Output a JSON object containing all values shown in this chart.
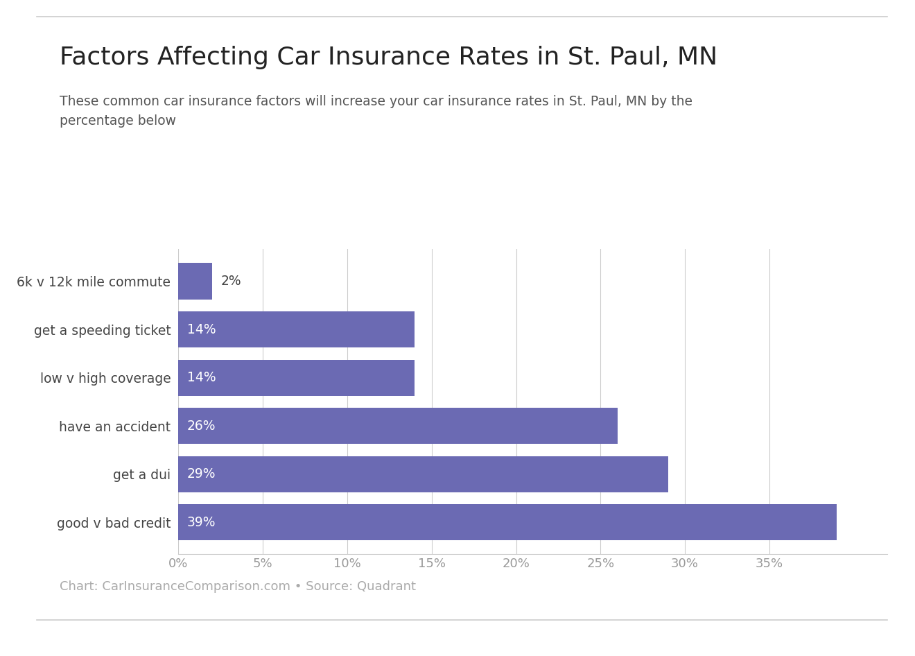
{
  "title": "Factors Affecting Car Insurance Rates in St. Paul, MN",
  "subtitle": "These common car insurance factors will increase your car insurance rates in St. Paul, MN by the\npercentage below",
  "categories": [
    "6k v 12k mile commute",
    "get a speeding ticket",
    "low v high coverage",
    "have an accident",
    "get a dui",
    "good v bad credit"
  ],
  "values": [
    2,
    14,
    14,
    26,
    29,
    39
  ],
  "bar_color": "#6b6ab3",
  "label_color_white": "#ffffff",
  "label_color_dark": "#555555",
  "background_color": "#ffffff",
  "footer_text": "Chart: CarInsuranceComparison.com • Source: Quadrant",
  "title_fontsize": 26,
  "subtitle_fontsize": 13.5,
  "footer_fontsize": 13,
  "bar_label_fontsize": 13.5,
  "ytick_fontsize": 13.5,
  "xtick_fontsize": 13,
  "xlim": [
    0,
    42
  ],
  "xticks": [
    0,
    5,
    10,
    15,
    20,
    25,
    30,
    35
  ],
  "xtick_labels": [
    "0%",
    "5%",
    "10%",
    "15%",
    "20%",
    "25%",
    "30%",
    "35%"
  ]
}
